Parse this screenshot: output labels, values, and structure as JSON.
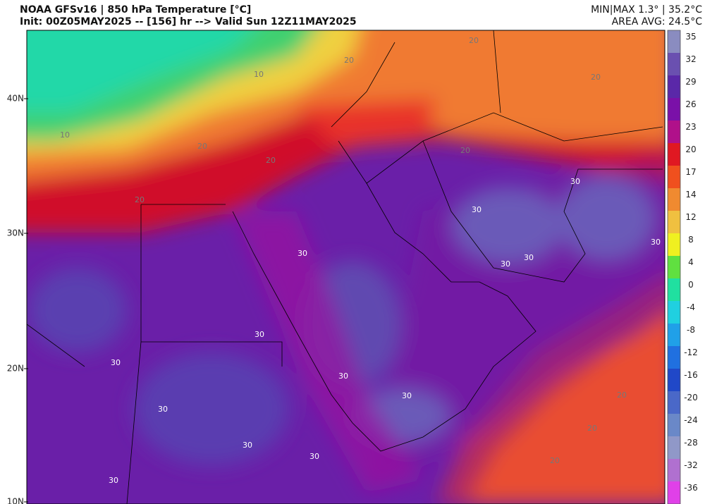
{
  "header": {
    "title": "NOAA GFSv16 | 850 hPa Temperature [°C]",
    "subtitle": "Init: 00Z05MAY2025 -- [156] hr --> Valid Sun 12Z11MAY2025",
    "range": "MIN|MAX 1.3° | 35.2°C",
    "area_avg": "AREA AVG: 24.5°C"
  },
  "colorbar": {
    "labels": [
      35,
      32,
      29,
      26,
      23,
      20,
      17,
      14,
      12,
      8,
      4,
      0,
      -4,
      -8,
      -12,
      -16,
      -20,
      -24,
      -28,
      -32,
      -36
    ]
  },
  "latitude_labels": [
    "40N",
    "30N",
    "20N",
    "10N"
  ],
  "contour_labels": [
    "20",
    "20",
    "20",
    "20",
    "20",
    "20",
    "20",
    "20",
    "20",
    "20",
    "10",
    "10",
    "30",
    "30",
    "30",
    "30",
    "30",
    "30",
    "30",
    "30",
    "30",
    "30",
    "30",
    "30",
    "30",
    "30"
  ]
}
